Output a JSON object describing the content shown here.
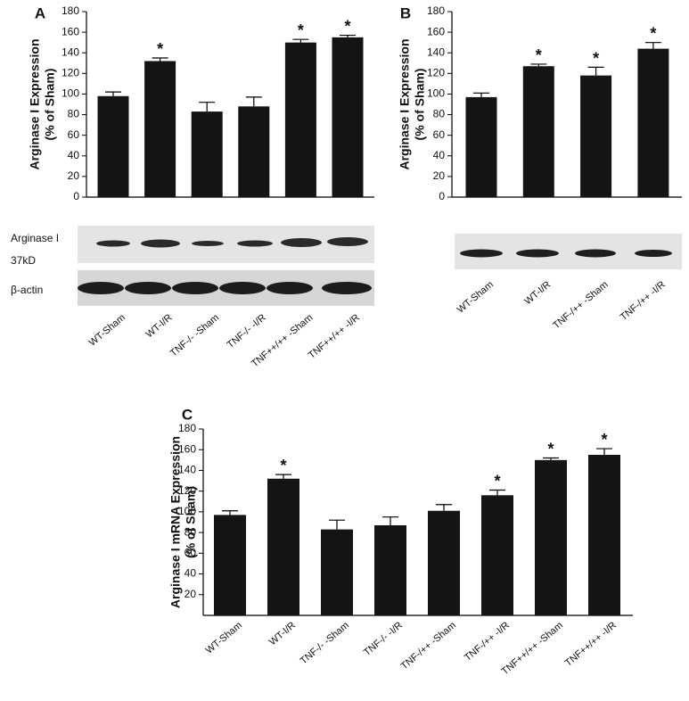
{
  "chart_data": [
    {
      "type": "bar",
      "panel": "A",
      "ylabel": [
        "Arginase I Expression",
        "(% of Sham)"
      ],
      "categories": [
        "WT-Sham",
        "WT-I/R",
        "TNF-/- -Sham",
        "TNF-/- -I/R",
        "TNF++/++ -Sham",
        "TNF++/++ -I/R"
      ],
      "values": [
        98,
        132,
        83,
        88,
        150,
        155
      ],
      "errors": [
        4,
        3,
        9,
        9,
        3,
        2
      ],
      "significant": [
        false,
        true,
        false,
        false,
        true,
        true
      ],
      "marker": "*",
      "color": "#141414",
      "ylim": [
        0,
        180
      ],
      "yticks": [
        0,
        20,
        40,
        60,
        80,
        100,
        120,
        140,
        160,
        180
      ],
      "blot_labels": [
        "Arginase I",
        "37kD",
        "β-actin"
      ]
    },
    {
      "type": "bar",
      "panel": "B",
      "ylabel": [
        "Arginase I Expression",
        "(% of Sham)"
      ],
      "categories": [
        "WT-Sham",
        "WT-I/R",
        "TNF-/++ -Sham",
        "TNF-/++ -I/R"
      ],
      "values": [
        97,
        127,
        118,
        144
      ],
      "errors": [
        4,
        2,
        8,
        6
      ],
      "significant": [
        false,
        true,
        true,
        true
      ],
      "marker": "*",
      "color": "#141414",
      "ylim": [
        0,
        180
      ],
      "yticks": [
        0,
        20,
        40,
        60,
        80,
        100,
        120,
        140,
        160,
        180
      ]
    },
    {
      "type": "bar",
      "panel": "C",
      "ylabel": [
        "Arginase I mRNA Expression",
        "(% of Sham)"
      ],
      "categories": [
        "WT-Sham",
        "WT-I/R",
        "TNF-/- -Sham",
        "TNF-/- -I/R",
        "TNF-/++ -Sham",
        "TNF-/++ -I/R",
        "TNF++/++ -Sham",
        "TNF++/++ -I/R"
      ],
      "values": [
        97,
        132,
        83,
        87,
        101,
        116,
        150,
        155
      ],
      "errors": [
        4,
        4,
        9,
        8,
        6,
        5,
        2,
        6
      ],
      "significant": [
        false,
        true,
        false,
        false,
        false,
        true,
        true,
        true
      ],
      "marker": "*",
      "color": "#141414",
      "ylim": [
        0,
        180
      ],
      "yticks": [
        20,
        40,
        60,
        80,
        100,
        120,
        140,
        160,
        180
      ]
    }
  ]
}
